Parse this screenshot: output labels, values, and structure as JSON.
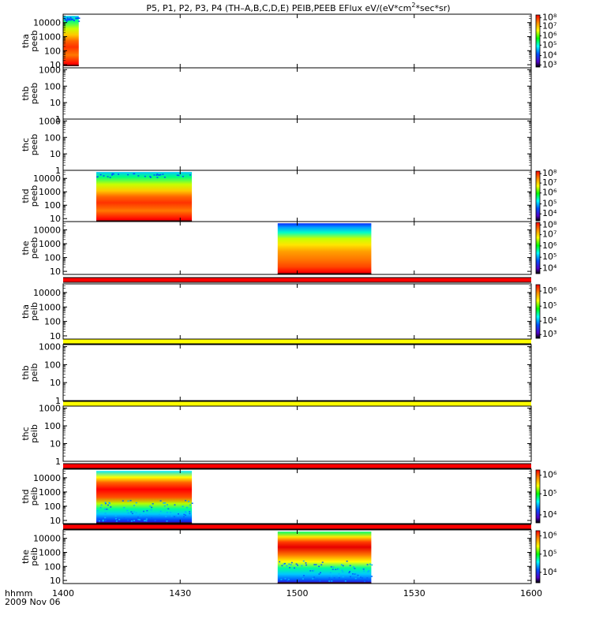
{
  "title_text": {
    "before": "P5, P1, P2, P3, P4 (TH–A,B,C,D,E) PEIB,PEEB EFlux eV/(eV*cm",
    "superscript": "2",
    "after": "*sec*sr)"
  },
  "x_axis": {
    "label": "hhmm",
    "date": "2009 Nov 06",
    "ticks": [
      "1400",
      "1430",
      "1500",
      "1530",
      "1600"
    ],
    "range_minutes": [
      0,
      120
    ],
    "tick_minutes": [
      0,
      30,
      60,
      90,
      120
    ]
  },
  "chart_data": {
    "type": "heatmap",
    "title": "P5, P1, P2, P3, P4 (TH-A,B,C,D,E) PEIB,PEEB EFlux eV/(eV*cm^2*sec*sr)",
    "xlabel": "hhmm",
    "colorscale": "rainbow (black-purple-blue-cyan-green-yellow-red)",
    "panels": [
      {
        "id": "tha-peeb",
        "name": [
          "tha",
          "peeb"
        ],
        "y_scale": "log",
        "y_ticks": [
          "10",
          "100",
          "1000",
          "10000"
        ],
        "y_tick_values": [
          10,
          100,
          1000,
          10000
        ],
        "ylim": [
          6,
          40000
        ],
        "flag_bar": null,
        "data": [
          {
            "t_start": 0,
            "t_end": 4,
            "e_low": 8,
            "e_high": 30000,
            "profile": "hot",
            "top_fade": true
          }
        ],
        "colorbar": {
          "ticks": [
            "10⁸",
            "10⁷",
            "10⁶",
            "10⁵",
            "10⁴",
            "10³"
          ],
          "tick_fracs": [
            0.05,
            0.22,
            0.4,
            0.58,
            0.78,
            0.96
          ]
        }
      },
      {
        "id": "thb-peeb",
        "name": [
          "thb",
          "peeb"
        ],
        "y_scale": "log",
        "y_ticks": [
          "1",
          "10",
          "100",
          "1000"
        ],
        "y_tick_values": [
          1,
          10,
          100,
          1000
        ],
        "ylim": [
          1,
          1300
        ],
        "flag_bar": null,
        "data": [],
        "colorbar": null
      },
      {
        "id": "thc-peeb",
        "name": [
          "thc",
          "peeb"
        ],
        "y_scale": "log",
        "y_ticks": [
          "1",
          "10",
          "100",
          "1000"
        ],
        "y_tick_values": [
          1,
          10,
          100,
          1000
        ],
        "ylim": [
          1,
          1300
        ],
        "flag_bar": null,
        "data": [],
        "colorbar": null
      },
      {
        "id": "thd-peeb",
        "name": [
          "thd",
          "peeb"
        ],
        "y_scale": "log",
        "y_ticks": [
          "10",
          "100",
          "1000",
          "10000"
        ],
        "y_tick_values": [
          10,
          100,
          1000,
          10000
        ],
        "ylim": [
          6,
          40000
        ],
        "flag_bar": null,
        "data": [
          {
            "t_start": 8.5,
            "t_end": 33,
            "e_low": 6,
            "e_high": 30000,
            "profile": "hot",
            "top_fade": true
          }
        ],
        "colorbar": {
          "ticks": [
            "10⁸",
            "10⁷",
            "10⁶",
            "10⁵",
            "10⁴"
          ],
          "tick_fracs": [
            0.05,
            0.24,
            0.44,
            0.66,
            0.86
          ]
        }
      },
      {
        "id": "the-peeb",
        "name": [
          "the",
          "peeb"
        ],
        "y_scale": "log",
        "y_ticks": [
          "10",
          "100",
          "1000",
          "10000"
        ],
        "y_tick_values": [
          10,
          100,
          1000,
          10000
        ],
        "ylim": [
          6,
          40000
        ],
        "flag_bar": null,
        "data": [
          {
            "t_start": 55,
            "t_end": 79,
            "e_low": 6,
            "e_high": 30000,
            "profile": "warm",
            "top_fade": true
          }
        ],
        "colorbar": {
          "ticks": [
            "10⁸",
            "10⁷",
            "10⁶",
            "10⁵",
            "10⁴"
          ],
          "tick_fracs": [
            0.05,
            0.24,
            0.46,
            0.68,
            0.9
          ]
        }
      },
      {
        "id": "tha-peib",
        "name": [
          "tha",
          "peib"
        ],
        "y_scale": "log",
        "y_ticks": [
          "10",
          "100",
          "1000",
          "10000"
        ],
        "y_tick_values": [
          10,
          100,
          1000,
          10000
        ],
        "ylim": [
          6,
          40000
        ],
        "flag_bar": "#ff0000",
        "data": [],
        "colorbar": {
          "ticks": [
            "10⁶",
            "10⁵",
            "10⁴",
            "10³"
          ],
          "tick_fracs": [
            0.12,
            0.4,
            0.68,
            0.93
          ]
        }
      },
      {
        "id": "thb-peib",
        "name": [
          "thb",
          "peib"
        ],
        "y_scale": "log",
        "y_ticks": [
          "1",
          "10",
          "100",
          "1000"
        ],
        "y_tick_values": [
          1,
          10,
          100,
          1000
        ],
        "ylim": [
          1,
          1300
        ],
        "flag_bar": "#ffff00",
        "data": [],
        "colorbar": null
      },
      {
        "id": "thc-peib",
        "name": [
          "thc",
          "peib"
        ],
        "y_scale": "log",
        "y_ticks": [
          "1",
          "10",
          "100",
          "1000"
        ],
        "y_tick_values": [
          1,
          10,
          100,
          1000
        ],
        "ylim": [
          1,
          1300
        ],
        "flag_bar": "#ffff00",
        "data": [],
        "colorbar": null
      },
      {
        "id": "thd-peib",
        "name": [
          "thd",
          "peib"
        ],
        "y_scale": "log",
        "y_ticks": [
          "10",
          "100",
          "1000",
          "10000"
        ],
        "y_tick_values": [
          10,
          100,
          1000,
          10000
        ],
        "ylim": [
          6,
          40000
        ],
        "flag_bar": "#ff0000",
        "data": [
          {
            "t_start": 8.5,
            "t_end": 33,
            "e_low": 6,
            "e_high": 30000,
            "profile": "ion",
            "top_fade": true
          }
        ],
        "colorbar": {
          "ticks": [
            "10⁶",
            "10⁵",
            "10⁴"
          ],
          "tick_fracs": [
            0.1,
            0.45,
            0.85
          ]
        }
      },
      {
        "id": "the-peib",
        "name": [
          "the",
          "peib"
        ],
        "y_scale": "log",
        "y_ticks": [
          "10",
          "100",
          "1000",
          "10000"
        ],
        "y_tick_values": [
          10,
          100,
          1000,
          10000
        ],
        "ylim": [
          6,
          40000
        ],
        "flag_bar": "#ff0000",
        "data": [
          {
            "t_start": 55,
            "t_end": 79,
            "e_low": 6,
            "e_high": 30000,
            "profile": "ion2",
            "top_fade": true
          }
        ],
        "colorbar": {
          "ticks": [
            "10⁶",
            "10⁵",
            "10⁴"
          ],
          "tick_fracs": [
            0.1,
            0.45,
            0.8
          ]
        }
      }
    ]
  }
}
